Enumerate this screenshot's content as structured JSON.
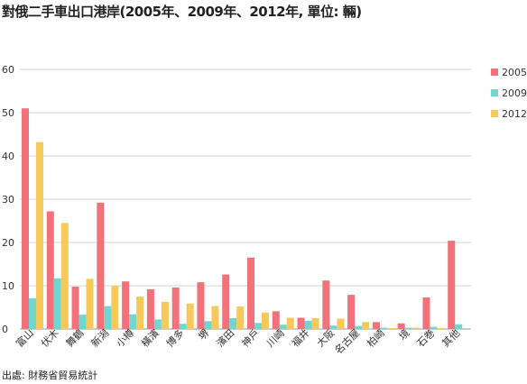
{
  "title": "對俄二手車出口港岸(2005年、2009年、2012年, 單位: 輛)",
  "source": "出處: 財務省貿易統計",
  "chart_data": {
    "type": "bar",
    "title": "對俄二手車出口港岸(2005年、2009年、2012年, 單位: 輛)",
    "xlabel": "",
    "ylabel": "",
    "ylim": [
      0,
      60
    ],
    "yticks": [
      0,
      10,
      20,
      30,
      40,
      50,
      60
    ],
    "grid": true,
    "legend_position": "right",
    "categories": [
      "富山",
      "伏木",
      "舞鶴",
      "新潟",
      "小樽",
      "橫濱",
      "博多",
      "堺",
      "濱田",
      "神戶",
      "川崎",
      "福井",
      "大阪",
      "名古屋",
      "柏崎",
      "境",
      "石巻",
      "其他"
    ],
    "series": [
      {
        "name": "2005",
        "color": "#f2717a",
        "values": [
          51,
          27.2,
          9.8,
          29.2,
          11,
          9.2,
          9.6,
          10.8,
          12.6,
          16.5,
          4.1,
          2.6,
          11.2,
          7.9,
          1.6,
          1.3,
          7.3,
          20.4
        ]
      },
      {
        "name": "2009",
        "color": "#6fd6d0",
        "values": [
          7.1,
          11.7,
          3.3,
          5.3,
          3.4,
          2.2,
          1.2,
          1.8,
          2.5,
          1.4,
          1,
          1.9,
          0.8,
          0.7,
          0.3,
          0.3,
          0.5,
          1.1
        ]
      },
      {
        "name": "2012",
        "color": "#f7c95b",
        "values": [
          43.2,
          24.5,
          11.6,
          10,
          7.5,
          6.3,
          5.9,
          5.3,
          5.2,
          3.8,
          2.6,
          2.5,
          2.4,
          1.6,
          0.2,
          0.3,
          0.2,
          0
        ]
      }
    ]
  }
}
